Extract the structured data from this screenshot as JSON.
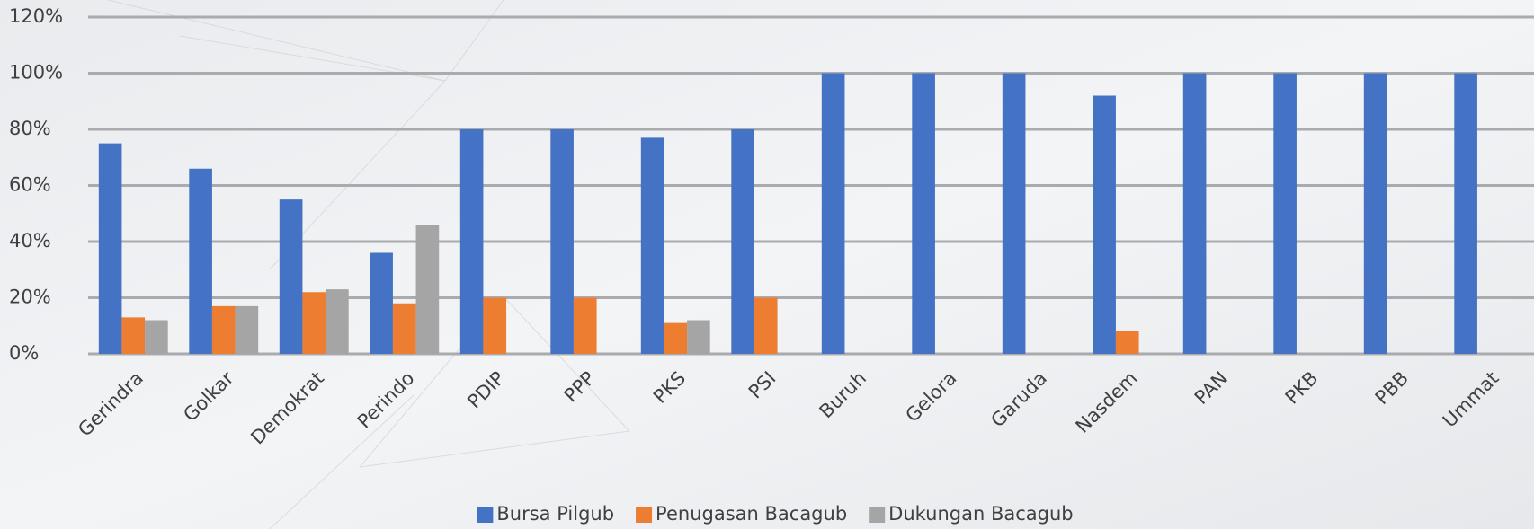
{
  "chart_data": {
    "type": "bar",
    "categories": [
      "Gerindra",
      "Golkar",
      "Demokrat",
      "Perindo",
      "PDIP",
      "PPP",
      "PKS",
      "PSI",
      "Buruh",
      "Gelora",
      "Garuda",
      "Nasdem",
      "PAN",
      "PKB",
      "PBB",
      "Ummat"
    ],
    "series": [
      {
        "name": "Bursa Pilgub",
        "color": "#4472c4",
        "values": [
          75,
          66,
          55,
          36,
          80,
          80,
          77,
          80,
          100,
          100,
          100,
          92,
          100,
          100,
          100,
          100
        ]
      },
      {
        "name": "Penugasan Bacagub",
        "color": "#ed7d31",
        "values": [
          13,
          17,
          22,
          18,
          20,
          20,
          11,
          20,
          0,
          0,
          0,
          8,
          0,
          0,
          0,
          0
        ]
      },
      {
        "name": "Dukungan Bacagub",
        "color": "#a5a5a5",
        "values": [
          12,
          17,
          23,
          46,
          0,
          0,
          12,
          0,
          0,
          0,
          0,
          0,
          0,
          0,
          0,
          0
        ]
      }
    ],
    "ylim": [
      0,
      120
    ],
    "yticks": [
      {
        "value": 0,
        "label": "0%"
      },
      {
        "value": 20,
        "label": "20%"
      },
      {
        "value": 40,
        "label": "40%"
      },
      {
        "value": 60,
        "label": "60%"
      },
      {
        "value": 80,
        "label": "80%"
      },
      {
        "value": 100,
        "label": "100%"
      },
      {
        "value": 120,
        "label": "120%"
      }
    ],
    "grid": true,
    "legend": "bottom"
  }
}
